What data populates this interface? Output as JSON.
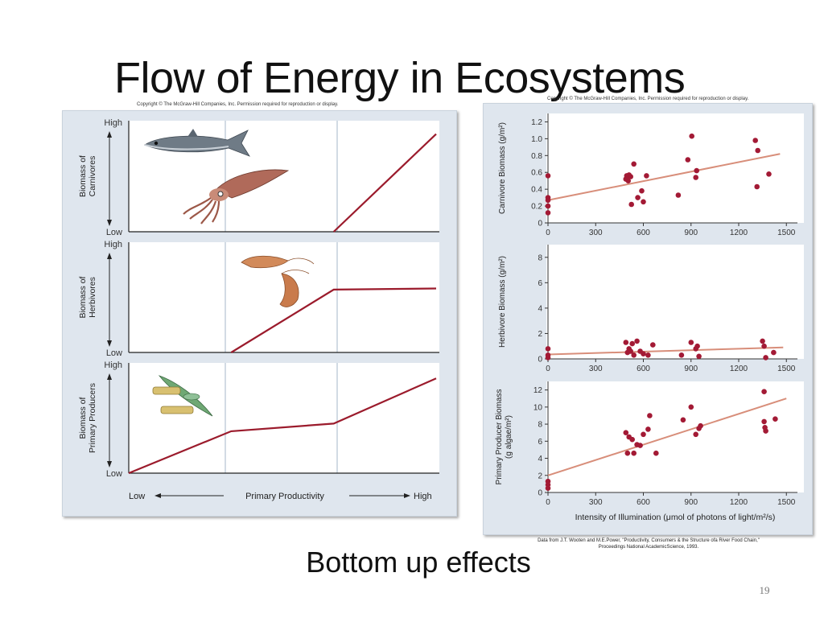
{
  "slide": {
    "title": "Flow of Energy in Ecosystems",
    "caption": "Bottom up effects",
    "page_number": "19"
  },
  "copyright_left": "Copyright © The McGraw-Hill Companies, Inc. Permission required for reproduction or display.",
  "copyright_right": "Copyright © The McGraw-Hill Companies, Inc. Permission required for reproduction or display.",
  "credit": {
    "line1": "Data from J.T. Wooten and M.E.Power, \"Productivity, Consumers & the Structure ofa River Food Chain,\"",
    "line2": "Proceedings National AcademicScience, 1993."
  },
  "conceptual": {
    "xlabel": "Primary Productivity",
    "x_low": "Low",
    "x_high": "High",
    "tick_high": "High",
    "tick_low": "Low",
    "line_color": "#9b1b2c",
    "panels": [
      {
        "ylabel_1": "Biomass of",
        "ylabel_2": "Carnivores",
        "icon": "fish-and-squid"
      },
      {
        "ylabel_1": "Biomass of",
        "ylabel_2": "Herbivores",
        "icon": "shrimp"
      },
      {
        "ylabel_1": "Biomass of",
        "ylabel_2": "Primary Producers",
        "icon": "algae"
      }
    ]
  },
  "chart_data": [
    {
      "type": "line",
      "title": "",
      "ylabel": "Biomass of Carnivores",
      "xlabel": "Primary Productivity",
      "x": [
        0,
        1,
        2,
        3
      ],
      "values": [
        0,
        0,
        0,
        0.88
      ],
      "xlim": [
        0,
        3
      ],
      "ylim": [
        0,
        1
      ]
    },
    {
      "type": "line",
      "title": "",
      "ylabel": "Biomass of Herbivores",
      "xlabel": "Primary Productivity",
      "x": [
        0,
        1,
        2,
        3
      ],
      "values": [
        0,
        0,
        0.57,
        0.58
      ],
      "xlim": [
        0,
        3
      ],
      "ylim": [
        0,
        1
      ]
    },
    {
      "type": "line",
      "title": "",
      "ylabel": "Biomass of Primary Producers",
      "xlabel": "Primary Productivity",
      "x": [
        0,
        1,
        2,
        3
      ],
      "values": [
        0,
        0.38,
        0.45,
        0.86
      ],
      "xlim": [
        0,
        3
      ],
      "ylim": [
        0,
        1
      ]
    },
    {
      "type": "scatter",
      "ylabel": "Carnivore Biomass (g/m²)",
      "xlabel": "",
      "xlim": [
        0,
        1600
      ],
      "ylim": [
        0,
        1.3
      ],
      "xticks": [
        0,
        300,
        600,
        900,
        1200,
        1500
      ],
      "yticks": [
        0,
        0.2,
        0.4,
        0.6,
        0.8,
        1.0,
        1.2
      ],
      "ytick_labels": [
        "0",
        "0.2",
        "0.4",
        "0.6",
        "0.8",
        "1.0",
        "1.2"
      ],
      "point_color": "#a31a35",
      "fit_color": "#d88e7a",
      "fit": [
        [
          0,
          0.27
        ],
        [
          1460,
          0.82
        ]
      ],
      "points": [
        [
          0,
          0.56
        ],
        [
          0,
          0.3
        ],
        [
          0,
          0.27
        ],
        [
          0,
          0.2
        ],
        [
          0,
          0.12
        ],
        [
          490,
          0.52
        ],
        [
          495,
          0.56
        ],
        [
          500,
          0.55
        ],
        [
          505,
          0.5
        ],
        [
          510,
          0.57
        ],
        [
          520,
          0.55
        ],
        [
          525,
          0.22
        ],
        [
          540,
          0.7
        ],
        [
          565,
          0.3
        ],
        [
          590,
          0.38
        ],
        [
          600,
          0.25
        ],
        [
          620,
          0.56
        ],
        [
          820,
          0.33
        ],
        [
          880,
          0.75
        ],
        [
          905,
          1.03
        ],
        [
          930,
          0.54
        ],
        [
          935,
          0.62
        ],
        [
          1305,
          0.98
        ],
        [
          1315,
          0.43
        ],
        [
          1320,
          0.86
        ],
        [
          1390,
          0.58
        ]
      ]
    },
    {
      "type": "scatter",
      "ylabel": "Herbivore Biomass (g/m²)",
      "xlabel": "",
      "xlim": [
        0,
        1600
      ],
      "ylim": [
        0,
        9
      ],
      "xticks": [
        0,
        300,
        600,
        900,
        1200,
        1500
      ],
      "yticks": [
        0,
        2,
        4,
        6,
        8
      ],
      "ytick_labels": [
        "0",
        "2",
        "4",
        "6",
        "8"
      ],
      "point_color": "#a31a35",
      "fit_color": "#d88e7a",
      "fit": [
        [
          0,
          0.35
        ],
        [
          1480,
          0.9
        ]
      ],
      "points": [
        [
          0,
          0.8
        ],
        [
          0,
          0.3
        ],
        [
          0,
          0.1
        ],
        [
          490,
          1.3
        ],
        [
          500,
          0.5
        ],
        [
          510,
          0.8
        ],
        [
          520,
          0.6
        ],
        [
          530,
          1.2
        ],
        [
          540,
          0.3
        ],
        [
          560,
          1.4
        ],
        [
          580,
          0.6
        ],
        [
          600,
          0.4
        ],
        [
          630,
          0.3
        ],
        [
          660,
          1.1
        ],
        [
          840,
          0.3
        ],
        [
          900,
          1.3
        ],
        [
          930,
          0.8
        ],
        [
          940,
          1.0
        ],
        [
          950,
          0.2
        ],
        [
          1350,
          1.4
        ],
        [
          1360,
          1.0
        ],
        [
          1370,
          0.1
        ],
        [
          1420,
          0.5
        ]
      ]
    },
    {
      "type": "scatter",
      "ylabel": "Primary Producer Biomass",
      "ylabel_2": "(g algae/m²)",
      "xlabel": "Intensity of Illumination (μmol of photons of light/m²/s)",
      "xlim": [
        0,
        1600
      ],
      "ylim": [
        0,
        13
      ],
      "xticks": [
        0,
        300,
        600,
        900,
        1200,
        1500
      ],
      "yticks": [
        0,
        2,
        4,
        6,
        8,
        10,
        12
      ],
      "ytick_labels": [
        "0",
        "2",
        "4",
        "6",
        "8",
        "10",
        "12"
      ],
      "point_color": "#a31a35",
      "fit_color": "#d88e7a",
      "fit": [
        [
          0,
          2.0
        ],
        [
          1500,
          11.0
        ]
      ],
      "points": [
        [
          0,
          1.3
        ],
        [
          0,
          0.9
        ],
        [
          0,
          0.5
        ],
        [
          490,
          7.0
        ],
        [
          500,
          4.6
        ],
        [
          510,
          6.5
        ],
        [
          530,
          6.2
        ],
        [
          540,
          4.6
        ],
        [
          560,
          5.6
        ],
        [
          580,
          5.5
        ],
        [
          600,
          6.8
        ],
        [
          630,
          7.4
        ],
        [
          640,
          9.0
        ],
        [
          680,
          4.6
        ],
        [
          850,
          8.5
        ],
        [
          900,
          10.0
        ],
        [
          930,
          6.8
        ],
        [
          950,
          7.5
        ],
        [
          960,
          7.8
        ],
        [
          1360,
          11.8
        ],
        [
          1360,
          8.3
        ],
        [
          1365,
          7.6
        ],
        [
          1370,
          7.2
        ],
        [
          1430,
          8.6
        ]
      ]
    }
  ]
}
